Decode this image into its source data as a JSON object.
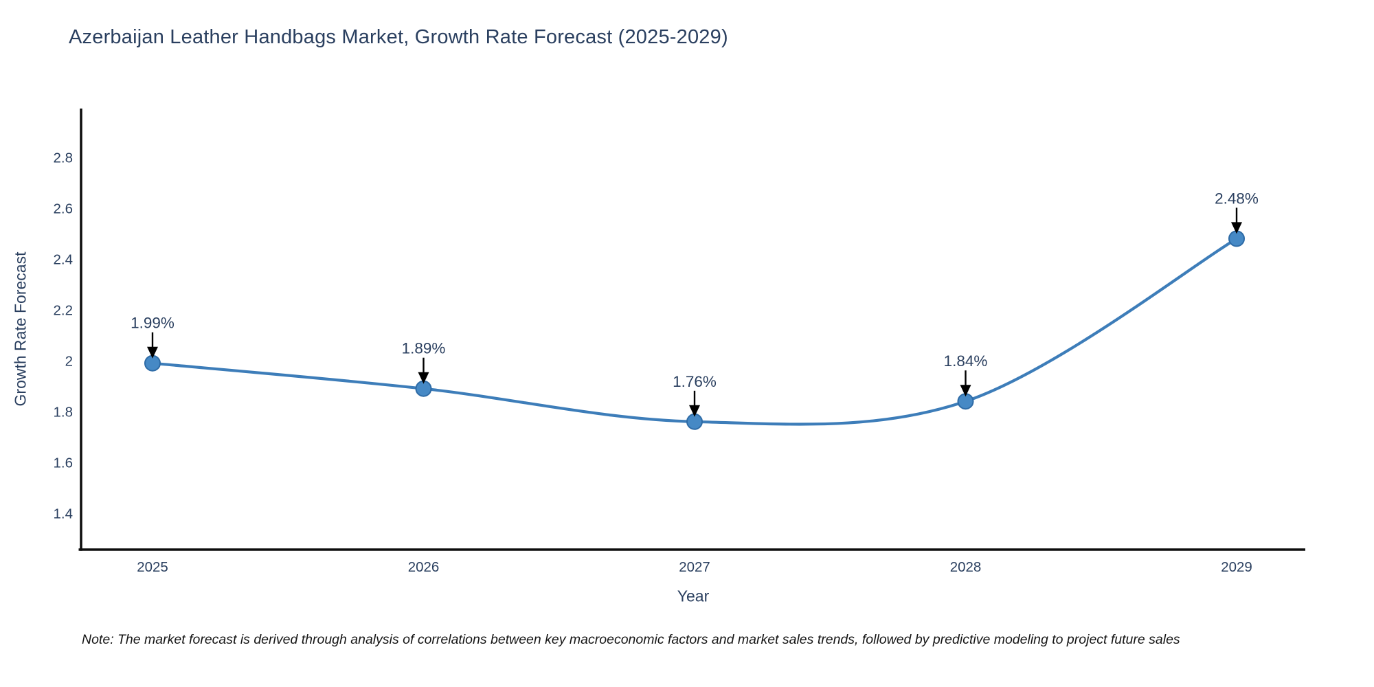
{
  "note": "Note: The market forecast is derived through analysis of correlations between key macroeconomic factors and market sales trends, followed by predictive modeling to project future sales",
  "chart_data": {
    "type": "line",
    "title": "Azerbaijan Leather Handbags Market, Growth Rate Forecast (2025-2029)",
    "xlabel": "Year",
    "ylabel": "Growth Rate Forecast",
    "x": [
      "2025",
      "2026",
      "2027",
      "2028",
      "2029"
    ],
    "values": [
      1.99,
      1.89,
      1.76,
      1.84,
      2.48
    ],
    "point_labels": [
      "1.99%",
      "1.89%",
      "1.76%",
      "1.84%",
      "2.48%"
    ],
    "ytick_labels": [
      "1.4",
      "1.6",
      "1.8",
      "2",
      "2.2",
      "2.4",
      "2.6",
      "2.8"
    ],
    "ytick_values": [
      1.4,
      1.6,
      1.8,
      2.0,
      2.2,
      2.4,
      2.6,
      2.8
    ],
    "ylim": [
      1.26,
      3.0
    ],
    "grid": false,
    "legend": "none",
    "line_shape": "spline",
    "annotations_have_arrows": true,
    "colors": {
      "line": "#3d7db9",
      "marker": "#4689c5",
      "marker_edge": "#2e6ba6",
      "text": "#2a3f5f",
      "axis": "#0d0d0d",
      "annotation_arrow": "#000000",
      "note_text": "#151515"
    }
  }
}
